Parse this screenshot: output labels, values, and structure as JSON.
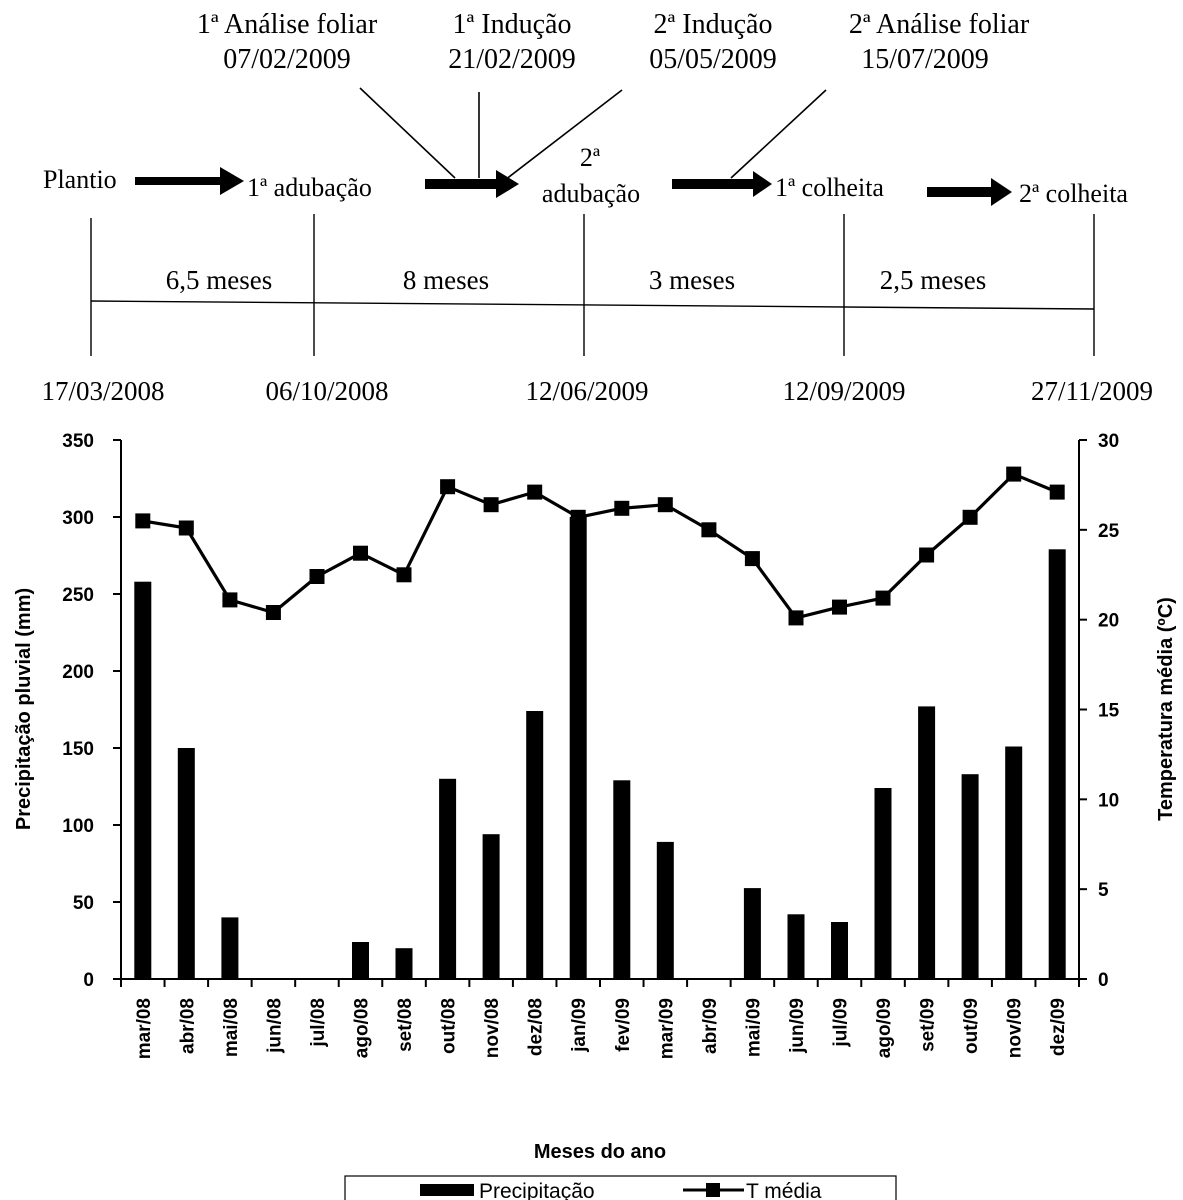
{
  "timeline": {
    "annotations": [
      {
        "line1": "1ª Análise foliar",
        "line2": "07/02/2009"
      },
      {
        "line1": "1ª Indução",
        "line2": "21/02/2009"
      },
      {
        "line1": "2ª Indução",
        "line2": "05/05/2009"
      },
      {
        "line1": "2ª Análise foliar",
        "line2": "15/07/2009"
      }
    ],
    "events": {
      "plantio": "Plantio",
      "adub1": "1ª adubação",
      "adub2_sup": "2ª",
      "adub2": "adubação",
      "colheita1": "1ª colheita",
      "colheita2": "2ª colheita"
    },
    "durations": [
      "6,5 meses",
      "8 meses",
      "3 meses",
      "2,5 meses"
    ],
    "dates": [
      "17/03/2008",
      "06/10/2008",
      "12/06/2009",
      "12/09/2009",
      "27/11/2009"
    ]
  },
  "chart_data": {
    "type": "bar",
    "xlabel": "Meses do ano",
    "ylabel": "Precipitação pluvial (mm)",
    "y2label": "Temperatura média (ºC)",
    "ylim": [
      0,
      350
    ],
    "y2lim": [
      0,
      30
    ],
    "yticks": [
      0,
      50,
      100,
      150,
      200,
      250,
      300,
      350
    ],
    "y2ticks": [
      0,
      5,
      10,
      15,
      20,
      25,
      30
    ],
    "categories": [
      "mar/08",
      "abr/08",
      "mai/08",
      "jun/08",
      "jul/08",
      "ago/08",
      "set/08",
      "out/08",
      "nov/08",
      "dez/08",
      "jan/09",
      "fev/09",
      "mar/09",
      "abr/09",
      "mai/09",
      "jun/09",
      "jul/09",
      "ago/09",
      "set/09",
      "out/09",
      "nov/09",
      "dez/09"
    ],
    "series": [
      {
        "name": "Precipitação",
        "kind": "bar",
        "axis": "left",
        "color": "#000000",
        "values": [
          258,
          150,
          40,
          0,
          0,
          24,
          20,
          130,
          94,
          174,
          300,
          129,
          89,
          0,
          59,
          42,
          37,
          124,
          177,
          133,
          151,
          279
        ]
      },
      {
        "name": "T média",
        "kind": "line",
        "axis": "right",
        "marker": "square",
        "color": "#000000",
        "values": [
          25.5,
          25.1,
          21.1,
          20.4,
          22.4,
          23.7,
          22.5,
          27.4,
          26.4,
          27.1,
          25.7,
          26.2,
          26.4,
          25.0,
          23.4,
          20.1,
          20.7,
          21.2,
          23.6,
          25.7,
          28.1,
          27.1
        ]
      }
    ],
    "legend": {
      "position": "bottom",
      "items": [
        "Precipitação",
        "T média"
      ]
    }
  }
}
